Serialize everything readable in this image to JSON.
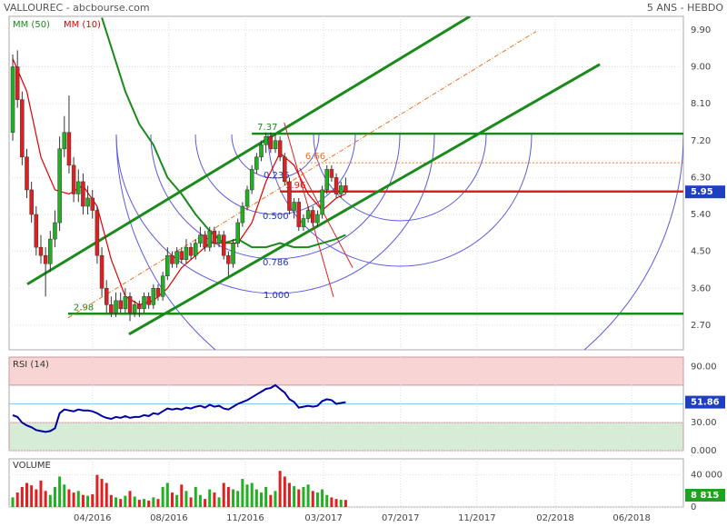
{
  "header": {
    "title": "VALLOUREC - abcbourse.com",
    "period": "5 ANS - HEBDO"
  },
  "chart_data": [
    {
      "type": "candlestick",
      "xlim": [
        -0.78,
        143.02
      ],
      "xticks": [
        {
          "value": 17,
          "label": "04/2016"
        },
        {
          "value": 33.3,
          "label": "08/2016"
        },
        {
          "value": 49.6,
          "label": "11/2016"
        },
        {
          "value": 66.3,
          "label": "03/2017"
        },
        {
          "value": 82.7,
          "label": "07/2017"
        },
        {
          "value": 99,
          "label": "11/2017"
        },
        {
          "value": 115.7,
          "label": "02/2018"
        },
        {
          "value": 132,
          "label": "06/2018"
        }
      ],
      "ylim": [
        2.1,
        10.23
      ],
      "yticks": [
        {
          "value": 9.9,
          "label": "9.90"
        },
        {
          "value": 9,
          "label": "9.00"
        },
        {
          "value": 8.1,
          "label": "8.10"
        },
        {
          "value": 7.2,
          "label": "7.20"
        },
        {
          "value": 6.3,
          "label": "6.30"
        },
        {
          "value": 5.4,
          "label": "5.40"
        },
        {
          "value": 4.5,
          "label": "4.50"
        },
        {
          "value": 3.6,
          "label": "3.60"
        },
        {
          "value": 2.7,
          "label": "2.70"
        }
      ],
      "grid": true,
      "up_color": "#22b022",
      "down_color": "#e02020",
      "candles": [
        [
          7.4,
          9.3,
          7.2,
          9.0
        ],
        [
          9.0,
          9.4,
          8.0,
          8.2
        ],
        [
          8.2,
          8.4,
          6.6,
          6.8
        ],
        [
          6.8,
          7.0,
          5.8,
          6.0
        ],
        [
          6.0,
          6.2,
          5.2,
          5.4
        ],
        [
          5.4,
          5.6,
          4.4,
          4.6
        ],
        [
          4.6,
          4.9,
          4.2,
          4.4
        ],
        [
          4.4,
          4.6,
          3.4,
          4.2
        ],
        [
          4.2,
          5.0,
          4.0,
          4.8
        ],
        [
          4.8,
          5.5,
          4.6,
          5.2
        ],
        [
          5.2,
          7.3,
          5.0,
          7.0
        ],
        [
          7.0,
          7.8,
          6.8,
          7.4
        ],
        [
          7.4,
          8.3,
          6.4,
          6.6
        ],
        [
          6.6,
          6.8,
          5.7,
          5.9
        ],
        [
          5.9,
          6.5,
          5.7,
          6.2
        ],
        [
          6.2,
          6.4,
          5.4,
          5.6
        ],
        [
          5.6,
          6.1,
          5.4,
          5.8
        ],
        [
          5.8,
          6.0,
          5.3,
          5.5
        ],
        [
          5.5,
          5.6,
          4.2,
          4.4
        ],
        [
          4.4,
          4.6,
          3.4,
          3.6
        ],
        [
          3.6,
          3.8,
          3.0,
          3.2
        ],
        [
          3.2,
          3.4,
          2.9,
          3.0
        ],
        [
          3.0,
          3.5,
          2.9,
          3.3
        ],
        [
          3.3,
          3.5,
          3.0,
          3.1
        ],
        [
          3.1,
          3.6,
          3.0,
          3.4
        ],
        [
          3.4,
          3.5,
          2.8,
          3.0
        ],
        [
          3.0,
          3.3,
          2.9,
          3.2
        ],
        [
          3.2,
          3.3,
          2.9,
          3.1
        ],
        [
          3.1,
          3.5,
          3.0,
          3.4
        ],
        [
          3.4,
          3.5,
          3.1,
          3.2
        ],
        [
          3.2,
          3.7,
          3.1,
          3.6
        ],
        [
          3.6,
          3.7,
          3.3,
          3.4
        ],
        [
          3.4,
          4.0,
          3.3,
          3.9
        ],
        [
          3.9,
          4.6,
          3.8,
          4.4
        ],
        [
          4.4,
          4.5,
          4.1,
          4.2
        ],
        [
          4.2,
          4.6,
          4.1,
          4.5
        ],
        [
          4.5,
          4.6,
          4.2,
          4.3
        ],
        [
          4.3,
          4.8,
          4.2,
          4.6
        ],
        [
          4.6,
          4.7,
          4.3,
          4.4
        ],
        [
          4.4,
          4.8,
          4.3,
          4.7
        ],
        [
          4.7,
          5.1,
          4.6,
          4.9
        ],
        [
          4.9,
          5.0,
          4.5,
          4.6
        ],
        [
          4.6,
          5.1,
          4.5,
          5.0
        ],
        [
          5.0,
          5.1,
          4.6,
          4.7
        ],
        [
          4.7,
          5.0,
          4.6,
          4.9
        ],
        [
          4.9,
          5.0,
          4.3,
          4.4
        ],
        [
          4.4,
          4.5,
          3.9,
          4.2
        ],
        [
          4.2,
          4.8,
          4.1,
          4.7
        ],
        [
          4.7,
          5.3,
          4.6,
          5.2
        ],
        [
          5.2,
          5.7,
          5.1,
          5.6
        ],
        [
          5.6,
          6.1,
          5.5,
          6.0
        ],
        [
          6.0,
          6.6,
          5.9,
          6.5
        ],
        [
          6.5,
          6.9,
          6.4,
          6.8
        ],
        [
          6.8,
          7.2,
          6.7,
          7.1
        ],
        [
          7.1,
          7.4,
          6.9,
          7.3
        ],
        [
          7.3,
          7.4,
          6.9,
          7.0
        ],
        [
          7.0,
          7.37,
          6.9,
          7.2
        ],
        [
          7.2,
          7.3,
          6.7,
          6.8
        ],
        [
          6.8,
          6.9,
          6.1,
          6.2
        ],
        [
          6.2,
          6.3,
          5.4,
          5.5
        ],
        [
          5.5,
          5.8,
          5.3,
          5.7
        ],
        [
          5.7,
          5.8,
          5.0,
          5.1
        ],
        [
          5.1,
          5.4,
          5.0,
          5.3
        ],
        [
          5.3,
          5.6,
          5.2,
          5.5
        ],
        [
          5.5,
          5.6,
          5.1,
          5.2
        ],
        [
          5.2,
          5.5,
          5.1,
          5.4
        ],
        [
          5.4,
          6.1,
          5.3,
          6.0
        ],
        [
          6.0,
          6.6,
          5.9,
          6.5
        ],
        [
          6.5,
          6.6,
          6.2,
          6.3
        ],
        [
          6.3,
          6.4,
          5.8,
          5.9
        ],
        [
          5.9,
          6.2,
          5.8,
          6.1
        ],
        [
          6.1,
          6.3,
          5.9,
          5.95
        ]
      ],
      "series": [
        {
          "name": "MM (50)",
          "color": "#1a8a1a",
          "x": [
            19,
            24,
            27,
            30,
            33,
            36,
            39,
            42,
            45,
            48,
            51,
            54,
            57,
            60,
            63,
            66,
            69,
            71
          ],
          "values": [
            10.2,
            8.4,
            7.6,
            7.1,
            6.3,
            5.9,
            5.4,
            5.0,
            4.7,
            4.8,
            4.6,
            4.6,
            4.7,
            4.6,
            4.6,
            4.7,
            4.8,
            4.9
          ]
        },
        {
          "name": "MM (10)",
          "color": "#e00000",
          "x": [
            0,
            3,
            6,
            9,
            12,
            15,
            18,
            21,
            24,
            27,
            30,
            33,
            36,
            39,
            42,
            45,
            48,
            51,
            54,
            57,
            60,
            63,
            66,
            69,
            71
          ],
          "values": [
            9.2,
            8.4,
            6.8,
            6.0,
            5.9,
            6.1,
            5.6,
            4.3,
            3.4,
            3.2,
            3.3,
            3.6,
            4.1,
            4.4,
            4.7,
            4.7,
            4.7,
            5.2,
            6.2,
            6.9,
            6.6,
            5.9,
            5.5,
            5.8,
            5.9
          ]
        }
      ],
      "legend": "top-left",
      "last_value": 5.95,
      "levels": [
        {
          "value": 7.37,
          "start": 51,
          "color": "#1a8a1a",
          "style": "solid"
        },
        {
          "value": 2.98,
          "start": 11.8,
          "color": "#1a8a1a",
          "style": "solid"
        },
        {
          "value": 6.66,
          "start": 61.2,
          "color": "#f07020",
          "style": "dotted"
        },
        {
          "value": 5.96,
          "start": 57,
          "color": "#e02020",
          "style": "solid"
        }
      ],
      "fib_labels": [
        "0.236",
        "0.500",
        "0.786",
        "1.000"
      ],
      "trendlines": [
        {
          "color": "#1a8a1a",
          "style": "thick",
          "x": [
            3.1,
            97.5
          ],
          "y": [
            3.7,
            10.23
          ]
        },
        {
          "color": "#1a8a1a",
          "style": "thick",
          "x": [
            24.8,
            125.2
          ],
          "y": [
            2.48,
            9.06
          ]
        },
        {
          "color": "#f07020",
          "style": "dashed",
          "x": [
            11.8,
            111.6
          ],
          "y": [
            2.88,
            9.86
          ]
        },
        {
          "color": "#e02020",
          "style": "thin",
          "x": [
            57.9,
            68.4
          ],
          "y": [
            7.64,
            3.39
          ]
        },
        {
          "color": "#e02020",
          "style": "thin",
          "x": [
            61.2,
            72.5
          ],
          "y": [
            6.53,
            4.1
          ]
        }
      ]
    },
    {
      "type": "line",
      "title": "RSI (14)",
      "color": "#0000a0",
      "values": [
        38,
        36,
        30,
        27,
        25,
        22,
        21,
        20,
        21,
        24,
        40,
        44,
        43,
        42,
        44,
        43,
        43,
        42,
        40,
        37,
        35,
        34,
        36,
        35,
        37,
        35,
        36,
        36,
        38,
        37,
        40,
        39,
        42,
        45,
        44,
        45,
        44,
        46,
        45,
        47,
        48,
        46,
        49,
        47,
        48,
        45,
        44,
        47,
        50,
        52,
        54,
        57,
        60,
        63,
        66,
        67,
        70,
        66,
        62,
        55,
        52,
        46,
        47,
        48,
        47,
        48,
        53,
        55,
        54,
        50,
        51,
        51.86
      ],
      "ylim": [
        0,
        100
      ],
      "yticks": [
        {
          "value": 90,
          "label": "90.00"
        },
        {
          "value": 30,
          "label": "30.00"
        },
        {
          "value": 0,
          "label": "0.000"
        }
      ],
      "bands": [
        {
          "from": 70,
          "to": 100,
          "color": "#f9d4d4"
        },
        {
          "from": 0,
          "to": 30,
          "color": "#d6ecd6"
        }
      ],
      "midline": 50
    },
    {
      "type": "bar",
      "title": "VOLUME",
      "values": [
        12000,
        18000,
        25000,
        30000,
        27000,
        22000,
        33000,
        20000,
        15000,
        25000,
        38000,
        28000,
        22000,
        18000,
        20000,
        15000,
        14000,
        16000,
        40000,
        35000,
        30000,
        15000,
        12000,
        10000,
        14000,
        20000,
        13000,
        9000,
        10000,
        8000,
        12000,
        10000,
        25000,
        30000,
        18000,
        15000,
        28000,
        20000,
        12000,
        25000,
        15000,
        10000,
        22000,
        18000,
        12000,
        30000,
        25000,
        22000,
        20000,
        35000,
        28000,
        30000,
        22000,
        18000,
        25000,
        15000,
        20000,
        45000,
        38000,
        30000,
        26000,
        22000,
        25000,
        28000,
        20000,
        18000,
        22000,
        15000,
        12000,
        10000,
        9000,
        8815
      ],
      "value_labels": [
        null,
        null,
        null,
        null,
        null,
        null,
        null,
        null,
        null,
        null,
        null,
        null,
        null,
        null,
        null,
        null,
        null,
        null,
        null,
        null,
        null,
        null,
        null,
        null,
        null,
        null,
        null,
        null,
        null,
        null,
        null,
        null,
        null,
        null,
        null,
        null,
        null,
        null,
        null,
        null,
        null,
        null,
        null,
        null,
        null,
        null,
        null,
        null,
        null,
        null,
        null,
        null,
        null,
        null,
        null,
        null,
        null,
        null,
        null,
        null,
        null,
        null,
        null,
        null,
        null,
        null,
        null,
        null,
        null,
        null,
        null,
        "8 815"
      ],
      "ylim": [
        0,
        60000
      ],
      "yticks": [
        {
          "value": 40000,
          "label": "40 000"
        },
        {
          "value": 0,
          "label": "0"
        }
      ]
    }
  ]
}
